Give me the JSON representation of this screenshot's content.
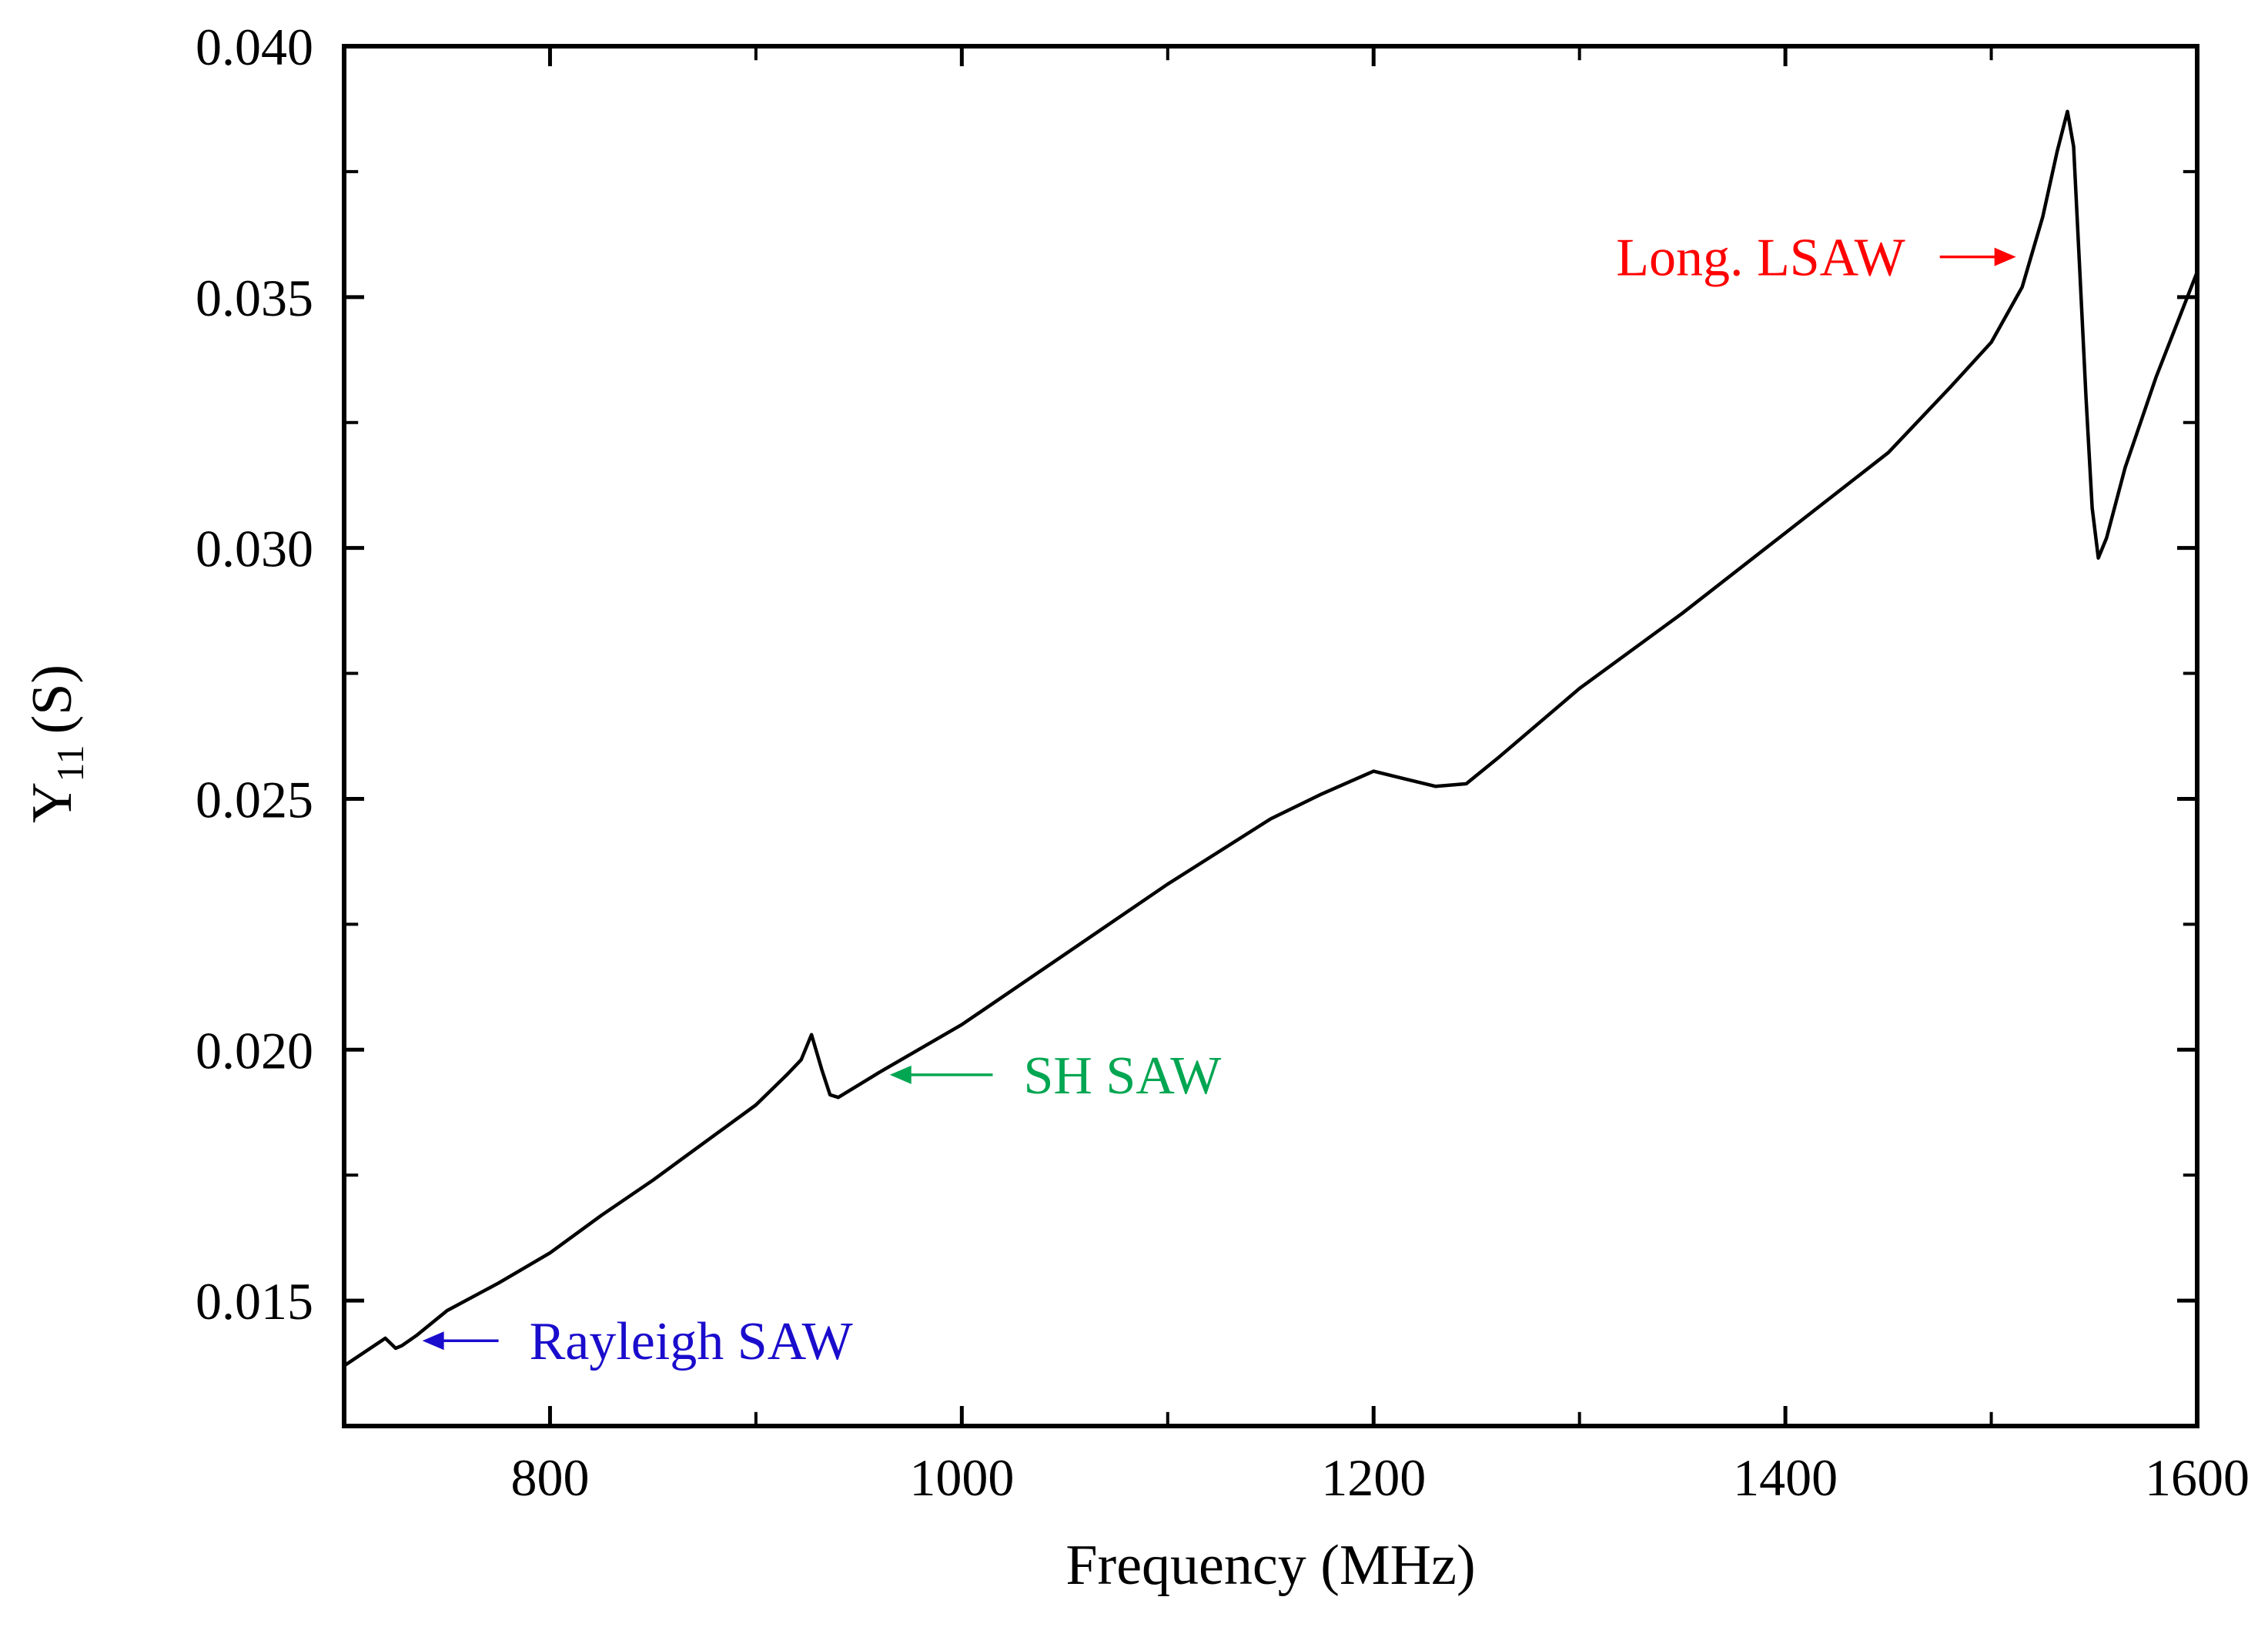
{
  "chart_data": {
    "type": "line",
    "title": "",
    "xlabel": "Frequency (MHz)",
    "ylabel_main": "Y",
    "ylabel_sub": "11",
    "ylabel_unit": "(S)",
    "xlim": [
      700,
      1600
    ],
    "ylim": [
      0.0125,
      0.04
    ],
    "xticks": [
      800,
      1000,
      1200,
      1400,
      1600
    ],
    "xtick_labels": [
      "800",
      "1000",
      "1200",
      "1400",
      "1600"
    ],
    "yticks": [
      0.015,
      0.02,
      0.025,
      0.03,
      0.035,
      0.04
    ],
    "ytick_labels": [
      "0.015",
      "0.020",
      "0.025",
      "0.030",
      "0.035",
      "0.040"
    ],
    "grid": false,
    "series": [
      {
        "name": "Y11",
        "color": "#000000",
        "x": [
          700,
          720,
          725,
          728,
          735,
          750,
          775,
          800,
          825,
          850,
          875,
          900,
          915,
          922,
          927,
          932,
          936,
          940,
          960,
          1000,
          1050,
          1100,
          1150,
          1175,
          1200,
          1215,
          1230,
          1245,
          1260,
          1300,
          1350,
          1400,
          1450,
          1480,
          1500,
          1515,
          1525,
          1532,
          1537,
          1540,
          1543,
          1546,
          1549,
          1552,
          1556,
          1565,
          1580,
          1600
        ],
        "y": [
          0.0137,
          0.01425,
          0.01405,
          0.0141,
          0.0143,
          0.0148,
          0.01535,
          0.01595,
          0.0167,
          0.0174,
          0.01815,
          0.0189,
          0.0195,
          0.0198,
          0.0203,
          0.0196,
          0.0191,
          0.01905,
          0.01955,
          0.0205,
          0.0219,
          0.0233,
          0.0246,
          0.0251,
          0.02555,
          0.0254,
          0.02525,
          0.0253,
          0.0258,
          0.0272,
          0.0287,
          0.0303,
          0.0319,
          0.0332,
          0.0341,
          0.0352,
          0.0366,
          0.0379,
          0.0387,
          0.038,
          0.0355,
          0.033,
          0.0308,
          0.0298,
          0.0302,
          0.0316,
          0.0334,
          0.0355
        ]
      }
    ],
    "annotations": [
      {
        "text": "Rayleigh SAW",
        "color": "#1a0ccc",
        "arrow_to_x": 738,
        "arrow_to_y": 0.0142,
        "arrow_from_x": 775,
        "arrow_from_y": 0.0142
      },
      {
        "text": "SH SAW",
        "color": "#00a651",
        "arrow_to_x": 965,
        "arrow_to_y": 0.0195,
        "arrow_from_x": 1015,
        "arrow_from_y": 0.0195
      },
      {
        "text": "Long. LSAW",
        "color": "#ff0000",
        "arrow_to_x": 1512,
        "arrow_to_y": 0.0358,
        "arrow_from_x": 1475,
        "arrow_from_y": 0.0358
      }
    ]
  }
}
